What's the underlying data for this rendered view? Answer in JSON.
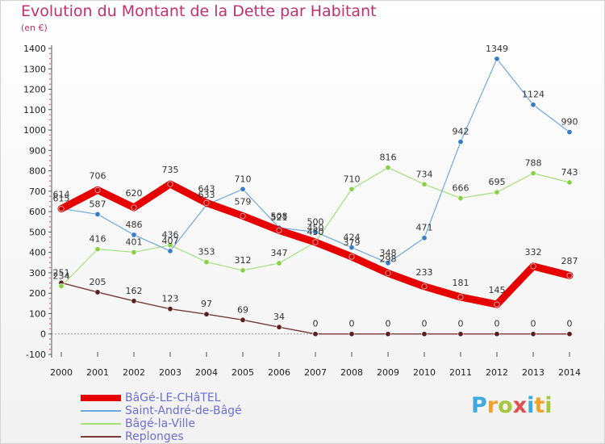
{
  "header": {
    "title": "Evolution du Montant de la Dette par Habitant",
    "subtitle": "(en €)"
  },
  "logo": {
    "text": "Proxiti",
    "colors": [
      "#3ea8e0",
      "#f2a12c",
      "#a6c83a",
      "#e04f4f",
      "#3ea8e0",
      "#f2a12c",
      "#a6c83a"
    ]
  },
  "chart_data": {
    "type": "line",
    "title": "Evolution du Montant de la Dette par Habitant",
    "ylabel": "(en €)",
    "xlabel": "",
    "x": [
      "2000",
      "2001",
      "2002",
      "2003",
      "2004",
      "2005",
      "2006",
      "2007",
      "2008",
      "2009",
      "2010",
      "2011",
      "2012",
      "2013",
      "2014"
    ],
    "ylim": [
      -100,
      1400
    ],
    "yticks": [
      -100,
      0,
      100,
      200,
      300,
      400,
      500,
      600,
      700,
      800,
      900,
      1000,
      1100,
      1200,
      1300,
      1400
    ],
    "grid": false,
    "legend_position": "bottom-left",
    "series": [
      {
        "name": "BâGé-LE-CHâTEL",
        "color": "#e60000",
        "marker_color": "#cc0000",
        "values": [
          614,
          706,
          620,
          735,
          643,
          579,
          508,
          450,
          379,
          298,
          233,
          181,
          145,
          332,
          287
        ]
      },
      {
        "name": "Saint-André-de-Bâgé",
        "color": "#6fa8dc",
        "marker_color": "#3a7bc8",
        "values": [
          615,
          587,
          486,
          407,
          633,
          710,
          521,
          500,
          424,
          348,
          471,
          942,
          1349,
          1124,
          990
        ]
      },
      {
        "name": "Bâgé-la-Ville",
        "color": "#a3e07a",
        "marker_color": "#88d048",
        "values": [
          234,
          416,
          401,
          436,
          353,
          312,
          347,
          450,
          710,
          816,
          734,
          666,
          695,
          788,
          743
        ]
      },
      {
        "name": "Replonges",
        "color": "#7a3a3a",
        "marker_color": "#5a1f1f",
        "values": [
          251,
          205,
          162,
          123,
          97,
          69,
          34,
          0,
          0,
          0,
          0,
          0,
          0,
          0,
          0
        ]
      }
    ]
  }
}
